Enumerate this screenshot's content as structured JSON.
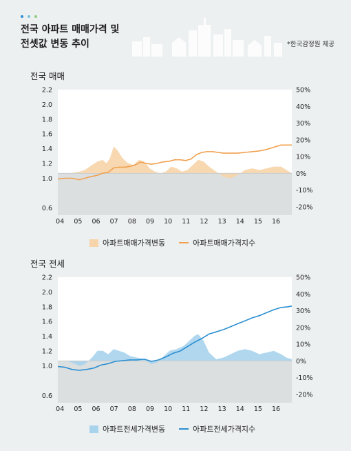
{
  "header": {
    "title_line1": "전국 아파트 매매가격 및",
    "title_line2": "전셋값 변동 추이",
    "source": "*한국감정원 제공",
    "dot_colors": [
      "#2f8fd8",
      "#7cc4d8",
      "#8fd07e"
    ]
  },
  "chart_data": [
    {
      "type": "area+line",
      "title": "전국 매매",
      "x_labels": [
        "04",
        "05",
        "06",
        "07",
        "08",
        "09",
        "10",
        "11",
        "12",
        "13",
        "14",
        "15",
        "16"
      ],
      "ylim_left": [
        0.5,
        2.2
      ],
      "ylim_right": [
        -25,
        50
      ],
      "left_ticks": [
        "2.2",
        "2.0",
        "1.8",
        "1.6",
        "1.4",
        "1.2",
        "1.0",
        "0.6"
      ],
      "right_ticks": [
        "50%",
        "40%",
        "30%",
        "20%",
        "10%",
        "0%",
        "-10%",
        "-20%"
      ],
      "series": [
        {
          "name": "아파트매매가격변동",
          "axis": "right",
          "kind": "area",
          "color": "#f7d4a9",
          "x": [
            2003.8,
            2004.5,
            2005.0,
            2005.3,
            2005.7,
            2006.0,
            2006.3,
            2006.5,
            2006.7,
            2006.9,
            2007.1,
            2007.4,
            2007.7,
            2008.0,
            2008.3,
            2008.6,
            2008.9,
            2009.2,
            2009.5,
            2009.8,
            2010.1,
            2010.4,
            2010.7,
            2011.0,
            2011.3,
            2011.6,
            2011.9,
            2012.2,
            2012.6,
            2013.0,
            2013.4,
            2013.8,
            2014.2,
            2014.6,
            2015.0,
            2015.4,
            2015.8,
            2016.2,
            2016.5,
            2016.8
          ],
          "y": [
            0,
            0,
            1,
            2,
            5,
            7,
            8,
            6,
            9,
            16,
            14,
            9,
            6,
            5,
            8,
            7,
            3,
            1,
            0,
            1,
            4,
            3,
            1,
            2,
            5,
            8,
            7,
            4,
            1,
            -2,
            -3,
            -1,
            2,
            3,
            2,
            3,
            4,
            4,
            2,
            0
          ]
        },
        {
          "name": "아파트매매가격지수",
          "axis": "left",
          "kind": "line",
          "color": "#f0a04e",
          "x": [
            2003.8,
            2004.2,
            2004.6,
            2005.0,
            2005.3,
            2005.6,
            2006.0,
            2006.3,
            2006.6,
            2006.9,
            2007.2,
            2007.5,
            2007.8,
            2008.1,
            2008.4,
            2008.7,
            2009.0,
            2009.3,
            2009.6,
            2010.0,
            2010.3,
            2010.6,
            2010.9,
            2011.2,
            2011.5,
            2011.8,
            2012.1,
            2012.4,
            2012.7,
            2013.0,
            2013.4,
            2013.8,
            2014.2,
            2014.6,
            2015.0,
            2015.4,
            2015.8,
            2016.2,
            2016.6,
            2016.8
          ],
          "y": [
            0.99,
            1.0,
            1.0,
            0.98,
            1.0,
            1.02,
            1.04,
            1.07,
            1.08,
            1.14,
            1.15,
            1.15,
            1.16,
            1.18,
            1.22,
            1.2,
            1.19,
            1.2,
            1.22,
            1.23,
            1.25,
            1.25,
            1.24,
            1.26,
            1.32,
            1.35,
            1.36,
            1.36,
            1.35,
            1.34,
            1.34,
            1.34,
            1.35,
            1.36,
            1.37,
            1.39,
            1.42,
            1.45,
            1.45,
            1.45
          ]
        }
      ]
    },
    {
      "type": "area+line",
      "title": "전국 전세",
      "x_labels": [
        "04",
        "05",
        "06",
        "07",
        "08",
        "09",
        "10",
        "11",
        "12",
        "13",
        "14",
        "15",
        "16"
      ],
      "ylim_left": [
        0.5,
        2.2
      ],
      "ylim_right": [
        -25,
        50
      ],
      "left_ticks": [
        "2.2",
        "2.0",
        "1.8",
        "1.6",
        "1.4",
        "1.2",
        "1.0",
        "0.6"
      ],
      "right_ticks": [
        "50%",
        "40%",
        "30%",
        "20%",
        "10%",
        "0%",
        "-10%",
        "-20%"
      ],
      "series": [
        {
          "name": "아파트전세가격변동",
          "axis": "right",
          "kind": "area",
          "color": "#a8d3ed",
          "x": [
            2003.8,
            2004.3,
            2004.8,
            2005.0,
            2005.3,
            2005.7,
            2006.0,
            2006.3,
            2006.6,
            2006.9,
            2007.2,
            2007.5,
            2007.8,
            2008.2,
            2008.6,
            2009.0,
            2009.3,
            2009.6,
            2010.0,
            2010.4,
            2010.8,
            2011.1,
            2011.4,
            2011.6,
            2011.9,
            2012.2,
            2012.6,
            2013.0,
            2013.4,
            2013.8,
            2014.2,
            2014.6,
            2015.0,
            2015.4,
            2015.8,
            2016.2,
            2016.5,
            2016.8
          ],
          "y": [
            0,
            0,
            -2,
            -3,
            -2,
            2,
            6,
            6,
            4,
            7,
            6,
            5,
            3,
            2,
            1,
            -2,
            -1,
            2,
            6,
            7,
            9,
            12,
            15,
            16,
            12,
            5,
            1,
            2,
            4,
            6,
            7,
            6,
            4,
            5,
            6,
            4,
            2,
            1
          ]
        },
        {
          "name": "아파트전세가격지수",
          "axis": "left",
          "kind": "line",
          "color": "#2b8fd0",
          "x": [
            2003.8,
            2004.2,
            2004.6,
            2005.0,
            2005.4,
            2005.8,
            2006.2,
            2006.6,
            2007.0,
            2007.4,
            2007.8,
            2008.2,
            2008.6,
            2009.0,
            2009.4,
            2009.8,
            2010.2,
            2010.6,
            2011.0,
            2011.4,
            2011.8,
            2012.2,
            2012.6,
            2013.0,
            2013.4,
            2013.8,
            2014.2,
            2014.6,
            2015.0,
            2015.4,
            2015.8,
            2016.2,
            2016.6,
            2016.8
          ],
          "y": [
            0.99,
            0.98,
            0.95,
            0.94,
            0.95,
            0.97,
            1.01,
            1.03,
            1.06,
            1.07,
            1.08,
            1.08,
            1.09,
            1.06,
            1.08,
            1.12,
            1.17,
            1.2,
            1.26,
            1.32,
            1.37,
            1.43,
            1.46,
            1.49,
            1.53,
            1.57,
            1.61,
            1.65,
            1.68,
            1.72,
            1.76,
            1.79,
            1.8,
            1.81
          ]
        }
      ]
    }
  ]
}
